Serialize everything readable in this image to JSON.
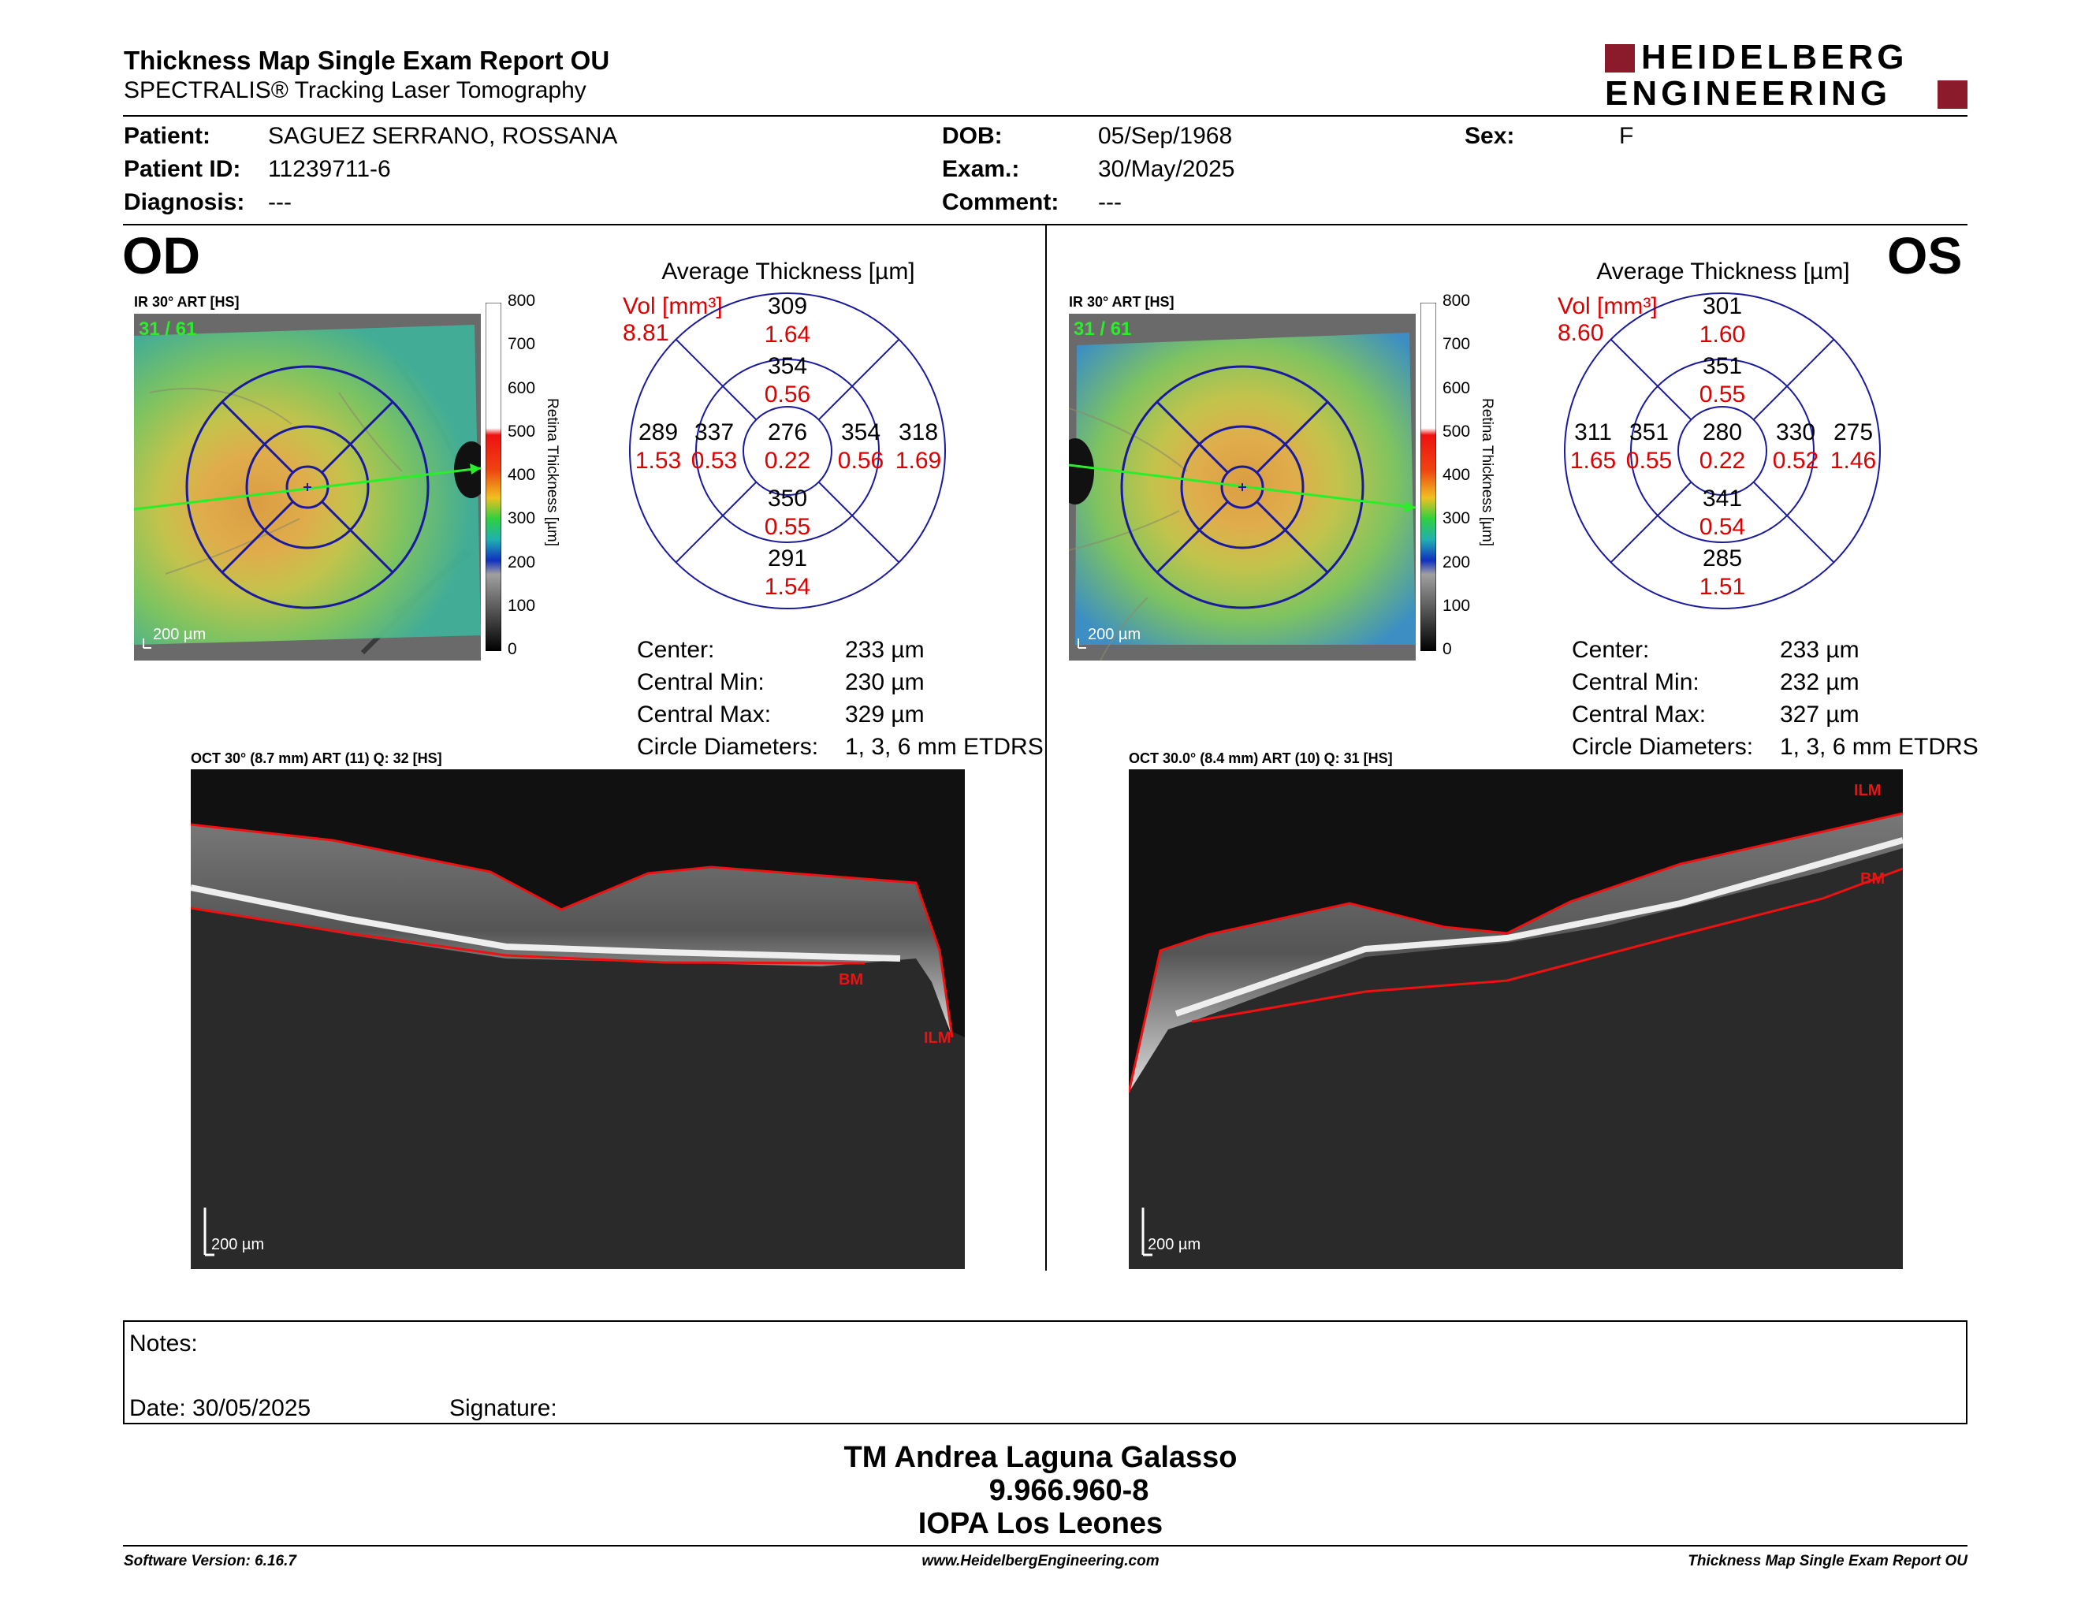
{
  "header": {
    "title": "Thickness Map Single Exam Report OU",
    "subtitle": "SPECTRALIS® Tracking Laser Tomography",
    "logo_line1": "HEIDELBERG",
    "logo_line2": "ENGINEERING",
    "logo_color": "#8b1a2a"
  },
  "patient": {
    "patient_label": "Patient:",
    "patient_value": "SAGUEZ SERRANO, ROSSANA",
    "id_label": "Patient ID:",
    "id_value": "11239711-6",
    "diag_label": "Diagnosis:",
    "diag_value": "---",
    "dob_label": "DOB:",
    "dob_value": "05/Sep/1968",
    "exam_label": "Exam.:",
    "exam_value": "30/May/2025",
    "comment_label": "Comment:",
    "comment_value": "---",
    "sex_label": "Sex:",
    "sex_value": "F"
  },
  "od": {
    "eye": "OD",
    "ir_caption": "IR 30° ART [HS]",
    "frames": "31 / 61",
    "scale": "200 µm",
    "colorbar_title": "Retina Thickness [µm]",
    "colorbar_ticks": [
      "800",
      "700",
      "600",
      "500",
      "400",
      "300",
      "200",
      "100",
      "0"
    ],
    "avg_title": "Average Thickness [µm]",
    "vol_label": "Vol [mm³]",
    "vol_value": "8.81",
    "etdrs": {
      "center": {
        "t": "276",
        "v": "0.22"
      },
      "inner_sup": {
        "t": "354",
        "v": "0.56"
      },
      "inner_inf": {
        "t": "350",
        "v": "0.55"
      },
      "inner_left": {
        "t": "337",
        "v": "0.53"
      },
      "inner_right": {
        "t": "354",
        "v": "0.56"
      },
      "outer_sup": {
        "t": "309",
        "v": "1.64"
      },
      "outer_inf": {
        "t": "291",
        "v": "1.54"
      },
      "outer_left": {
        "t": "289",
        "v": "1.53"
      },
      "outer_right": {
        "t": "318",
        "v": "1.69"
      }
    },
    "stats": [
      {
        "label": "Center:",
        "value": "233 µm"
      },
      {
        "label": "Central Min:",
        "value": "230 µm"
      },
      {
        "label": "Central Max:",
        "value": "329 µm"
      },
      {
        "label": "Circle Diameters:",
        "value": "1, 3, 6 mm ETDRS"
      }
    ],
    "oct_caption": "OCT 30° (8.7 mm) ART (11) Q: 32 [HS]",
    "oct_scale": "200 µm",
    "ilm": "ILM",
    "bm": "BM"
  },
  "os": {
    "eye": "OS",
    "ir_caption": "IR 30° ART [HS]",
    "frames": "31 / 61",
    "scale": "200 µm",
    "colorbar_title": "Retina Thickness [µm]",
    "colorbar_ticks": [
      "800",
      "700",
      "600",
      "500",
      "400",
      "300",
      "200",
      "100",
      "0"
    ],
    "avg_title": "Average Thickness [µm]",
    "vol_label": "Vol [mm³]",
    "vol_value": "8.60",
    "etdrs": {
      "center": {
        "t": "280",
        "v": "0.22"
      },
      "inner_sup": {
        "t": "351",
        "v": "0.55"
      },
      "inner_inf": {
        "t": "341",
        "v": "0.54"
      },
      "inner_left": {
        "t": "351",
        "v": "0.55"
      },
      "inner_right": {
        "t": "330",
        "v": "0.52"
      },
      "outer_sup": {
        "t": "301",
        "v": "1.60"
      },
      "outer_inf": {
        "t": "285",
        "v": "1.51"
      },
      "outer_left": {
        "t": "311",
        "v": "1.65"
      },
      "outer_right": {
        "t": "275",
        "v": "1.46"
      }
    },
    "stats": [
      {
        "label": "Center:",
        "value": "233 µm"
      },
      {
        "label": "Central Min:",
        "value": "232 µm"
      },
      {
        "label": "Central Max:",
        "value": "327 µm"
      },
      {
        "label": "Circle Diameters:",
        "value": "1, 3, 6 mm ETDRS"
      }
    ],
    "oct_caption": "OCT 30.0° (8.4 mm) ART (10) Q: 31 [HS]",
    "oct_scale": "200 µm",
    "ilm": "ILM",
    "bm": "BM"
  },
  "notes": {
    "notes_label": "Notes:",
    "date_label": "Date: 30/05/2025",
    "signature_label": "Signature:"
  },
  "signatory": {
    "name": "TM Andrea Laguna Galasso",
    "id": "9.966.960-8",
    "org": "IOPA Los Leones"
  },
  "footer": {
    "software": "Software Version: 6.16.7",
    "website": "www.HeidelbergEngineering.com",
    "report": "Thickness Map Single Exam Report OU"
  }
}
